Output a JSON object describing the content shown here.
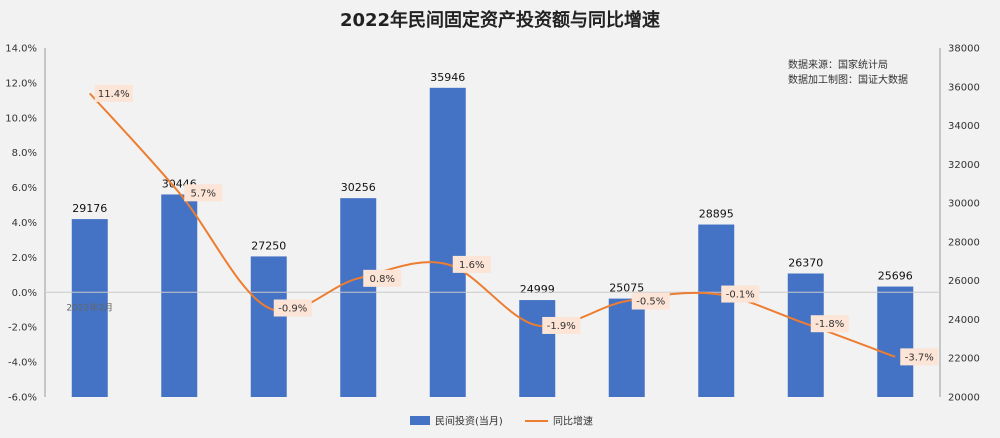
{
  "chart_data": {
    "type": "bar",
    "title": "2022年民间固定资产投资额与同比增速",
    "source_lines": [
      "数据来源：国家统计局",
      "数据加工制图：国证大数据"
    ],
    "xlabel": "",
    "ylabel": "",
    "categories": [
      "2022年2月",
      "",
      "",
      "",
      "",
      "",
      "",
      "",
      "",
      ""
    ],
    "series": [
      {
        "name": "民间投资(当月)",
        "type": "bar",
        "axis": "right",
        "color": "#4472C4",
        "values": [
          29176,
          30446,
          27250,
          30256,
          35946,
          24999,
          25075,
          28895,
          26370,
          25696
        ]
      },
      {
        "name": "同比增速",
        "type": "line",
        "axis": "left",
        "color": "#ED7D31",
        "values": [
          11.4,
          5.7,
          -0.9,
          0.8,
          1.6,
          -1.9,
          -0.5,
          -0.1,
          -1.8,
          -3.7
        ],
        "labels": [
          "11.4%",
          "5.7%",
          "-0.9%",
          "0.8%",
          "1.6%",
          "-1.9%",
          "-0.5%",
          "-0.1%",
          "-1.8%",
          "-3.7%"
        ]
      }
    ],
    "left_axis": {
      "ylim": [
        -6,
        14
      ],
      "ticks": [
        "14.0%",
        "12.0%",
        "10.0%",
        "8.0%",
        "6.0%",
        "4.0%",
        "2.0%",
        "0.0%",
        "-2.0%",
        "-4.0%",
        "-6.0%"
      ]
    },
    "right_axis": {
      "ylim": [
        20000,
        38000
      ],
      "ticks": [
        "38000",
        "36000",
        "34000",
        "32000",
        "30000",
        "28000",
        "26000",
        "24000",
        "22000",
        "20000"
      ]
    },
    "legend_position": "bottom-center",
    "grid": false
  }
}
